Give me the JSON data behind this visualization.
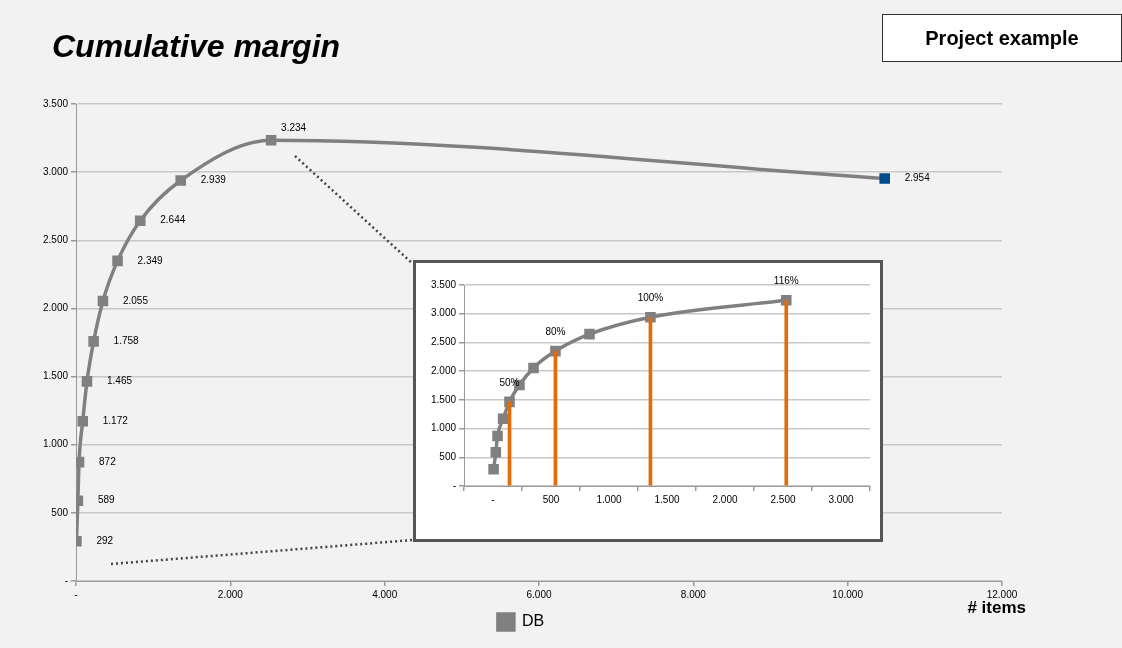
{
  "chart_data": [
    {
      "type": "line",
      "title": "Cumulative margin",
      "xlabel": "# items",
      "annotations": [
        "Project example"
      ],
      "x": [
        5,
        24,
        39,
        87,
        142,
        228,
        349,
        538,
        832,
        1357,
        2528,
        10480
      ],
      "series": [
        {
          "name": "DB",
          "color": "#808080",
          "colors": [
            "#808080",
            "#808080",
            "#808080",
            "#808080",
            "#808080",
            "#808080",
            "#808080",
            "#808080",
            "#808080",
            "#808080",
            "#808080",
            "#004a8a"
          ],
          "values": [
            292,
            589,
            872,
            1172,
            1465,
            1758,
            2055,
            2349,
            2644,
            2939,
            3234,
            2954
          ],
          "value_labels": [
            "292",
            "589",
            "872",
            "1.172",
            "1.465",
            "1.758",
            "2.055",
            "2.349",
            "2.644",
            "2.939",
            "3.234",
            "2.954"
          ]
        }
      ],
      "xlim": [
        0,
        12000
      ],
      "xticks": [
        {
          "value": 0,
          "label": "-"
        },
        {
          "value": 2000,
          "label": "2.000"
        },
        {
          "value": 4000,
          "label": "4.000"
        },
        {
          "value": 6000,
          "label": "6.000"
        },
        {
          "value": 8000,
          "label": "8.000"
        },
        {
          "value": 10000,
          "label": "10.000"
        },
        {
          "value": 12000,
          "label": "12.000"
        }
      ],
      "ylim": [
        0,
        3500
      ],
      "yticks": [
        {
          "value": 0,
          "label": "-"
        },
        {
          "value": 500,
          "label": "500"
        },
        {
          "value": 1000,
          "label": "1.000"
        },
        {
          "value": 1500,
          "label": "1.500"
        },
        {
          "value": 2000,
          "label": "2.000"
        },
        {
          "value": 2500,
          "label": "2.500"
        },
        {
          "value": 3000,
          "label": "3.000"
        },
        {
          "value": 3500,
          "label": "3.500"
        }
      ],
      "grid": "y",
      "legend": "bottom",
      "marker": "square"
    },
    {
      "type": "line",
      "series": [
        {
          "color": "#808080",
          "x": [
            5,
            24,
            39,
            87,
            142,
            228,
            349,
            538,
            832,
            1357,
            2528
          ],
          "values": [
            292,
            589,
            872,
            1172,
            1465,
            1758,
            2055,
            2349,
            2644,
            2939,
            3234
          ]
        },
        {
          "type": "bar",
          "color": "#e36c09",
          "x": [
            142,
            538,
            1357,
            2528
          ],
          "values": [
            1465,
            2349,
            2939,
            3234
          ]
        }
      ],
      "annotations": [
        {
          "text": "50%",
          "x": 142,
          "y": 1465
        },
        {
          "text": "80%",
          "x": 538,
          "y": 2349
        },
        {
          "text": "100%",
          "x": 1357,
          "y": 2939
        },
        {
          "text": "116%",
          "x": 2528,
          "y": 3234
        }
      ],
      "xlim": [
        0,
        3000
      ],
      "xticks": [
        {
          "value": 0,
          "label": "-"
        },
        {
          "value": 500,
          "label": "500"
        },
        {
          "value": 1000,
          "label": "1.000"
        },
        {
          "value": 1500,
          "label": "1.500"
        },
        {
          "value": 2000,
          "label": "2.000"
        },
        {
          "value": 2500,
          "label": "2.500"
        },
        {
          "value": 3000,
          "label": "3.000"
        }
      ],
      "ylim": [
        0,
        3500
      ],
      "yticks": [
        {
          "value": 0,
          "label": "-"
        },
        {
          "value": 500,
          "label": "500"
        },
        {
          "value": 1000,
          "label": "1.000"
        },
        {
          "value": 1500,
          "label": "1.500"
        },
        {
          "value": 2000,
          "label": "2.000"
        },
        {
          "value": 2500,
          "label": "2.500"
        },
        {
          "value": 3000,
          "label": "3.000"
        },
        {
          "value": 3500,
          "label": "3.500"
        }
      ],
      "grid": "y",
      "marker": "square"
    }
  ]
}
